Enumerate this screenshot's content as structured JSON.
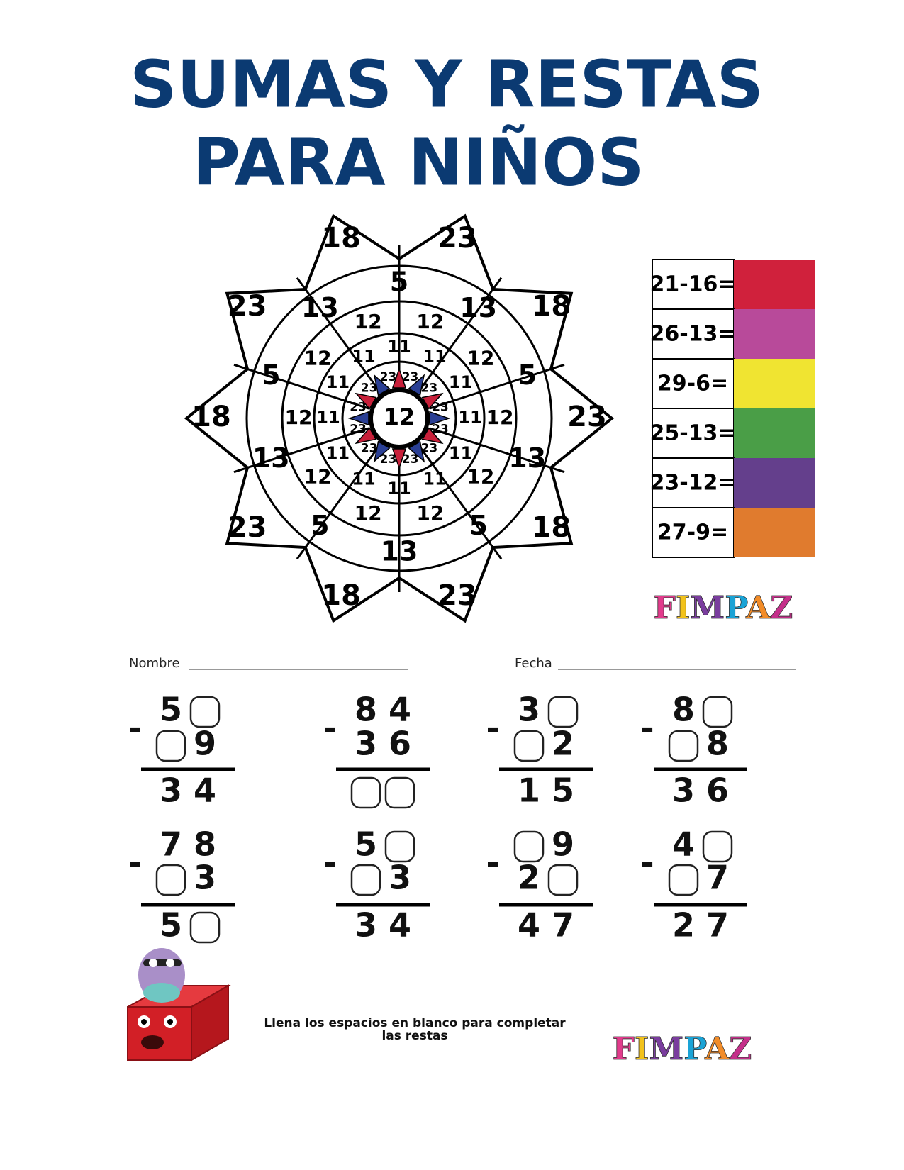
{
  "header": {
    "title_lines": [
      "SUMAS Y RESTAS",
      "PARA NIÑOS"
    ]
  },
  "mandala": {
    "center": "12",
    "ring1": [
      "23",
      "23",
      "23",
      "23",
      "23",
      "23",
      "23",
      "23",
      "23",
      "23",
      "23",
      "23"
    ],
    "ring2": [
      "11",
      "11",
      "11",
      "11",
      "11",
      "11",
      "11",
      "11",
      "11",
      "11",
      "11",
      "11"
    ],
    "ring3": [
      "12",
      "12",
      "12",
      "12",
      "12",
      "12",
      "12",
      "12",
      "12",
      "12"
    ],
    "ring4": [
      "5",
      "13",
      "5",
      "13",
      "5",
      "13",
      "5",
      "13",
      "5",
      "13"
    ],
    "ring5": [
      "18",
      "23",
      "18",
      "23",
      "18",
      "23",
      "18",
      "23",
      "18",
      "23"
    ]
  },
  "key": [
    {
      "expression": "21-16=",
      "color": "#d0213c"
    },
    {
      "expression": "26-13=",
      "color": "#b84a9a"
    },
    {
      "expression": "29-6=",
      "color": "#f0e431"
    },
    {
      "expression": "25-13=",
      "color": "#4a9e47"
    },
    {
      "expression": "23-12=",
      "color": "#643f8c"
    },
    {
      "expression": "27-9=",
      "color": "#e07b2e"
    }
  ],
  "brand": {
    "text": "FIMPAZ",
    "colors": [
      "#e23b8c",
      "#f2c21b",
      "#7a3d9e",
      "#1aa3d6",
      "#f28c28",
      "#c4308a"
    ]
  },
  "fields": {
    "name": "Nombre",
    "date": "Fecha"
  },
  "operator": "-",
  "problems": [
    {
      "top": [
        "5",
        null
      ],
      "bottom": [
        null,
        "9"
      ],
      "result": [
        "3",
        "4"
      ]
    },
    {
      "top": [
        "8",
        "4"
      ],
      "bottom": [
        "3",
        "6"
      ],
      "result": [
        null,
        null
      ]
    },
    {
      "top": [
        "3",
        null
      ],
      "bottom": [
        null,
        "2"
      ],
      "result": [
        "1",
        "5"
      ]
    },
    {
      "top": [
        "8",
        null
      ],
      "bottom": [
        null,
        "8"
      ],
      "result": [
        "3",
        "6"
      ]
    },
    {
      "top": [
        "7",
        "8"
      ],
      "bottom": [
        null,
        "3"
      ],
      "result": [
        "5",
        null
      ]
    },
    {
      "top": [
        "5",
        null
      ],
      "bottom": [
        null,
        "3"
      ],
      "result": [
        "3",
        "4"
      ]
    },
    {
      "top": [
        null,
        "9"
      ],
      "bottom": [
        "2",
        null
      ],
      "result": [
        "4",
        "7"
      ]
    },
    {
      "top": [
        "4",
        null
      ],
      "bottom": [
        null,
        "7"
      ],
      "result": [
        "2",
        "7"
      ]
    }
  ],
  "instructions": [
    "Llena los espacios en blanco para completar",
    "las restas"
  ]
}
